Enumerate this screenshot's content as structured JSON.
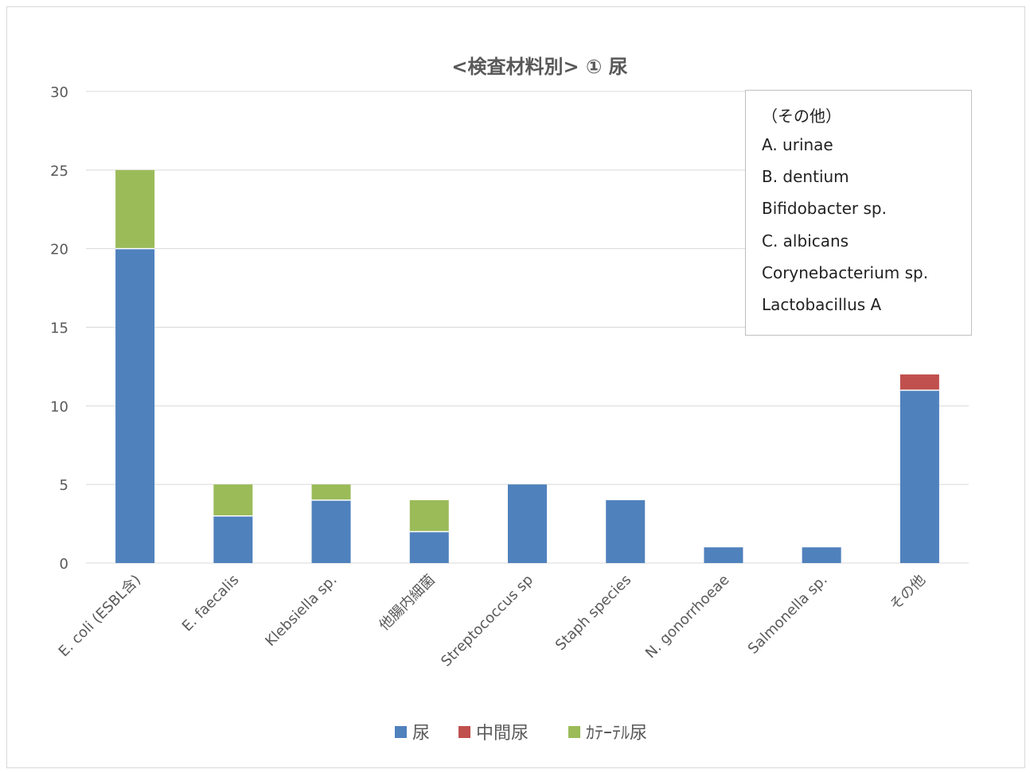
{
  "chart_data": {
    "type": "bar",
    "stacked": true,
    "title": "<検査材料別> ① 尿",
    "categories": [
      "E. coli (ESBL含)",
      "E. faecalis",
      "Klebsiella sp.",
      "他腸内細菌",
      "Streptococcus sp",
      "Staph species",
      "N. gonorrhoeae",
      "Salmonella sp.",
      "その他"
    ],
    "series": [
      {
        "name": "尿",
        "color": "#4f81bd",
        "values": [
          20,
          3,
          4,
          2,
          5,
          4,
          1,
          1,
          11
        ]
      },
      {
        "name": "中間尿",
        "color": "#c0504d",
        "values": [
          0,
          0,
          0,
          0,
          0,
          0,
          0,
          0,
          1
        ]
      },
      {
        "name": "ｶﾃｰﾃﾙ尿",
        "color": "#9bbb59",
        "values": [
          5,
          2,
          1,
          2,
          0,
          0,
          0,
          0,
          0
        ]
      }
    ],
    "yticks": [
      "0",
      "5",
      "10",
      "15",
      "20",
      "25",
      "30"
    ],
    "ylim": [
      0,
      30
    ],
    "grid": true,
    "legend": "bottom",
    "xlabel": "",
    "ylabel": ""
  },
  "note": {
    "lines": [
      "（その他）",
      "A. urinae",
      "B. dentium",
      "Bifidobacter sp.",
      "C. albicans",
      "Corynebacterium sp.",
      "Lactobacillus A"
    ]
  }
}
